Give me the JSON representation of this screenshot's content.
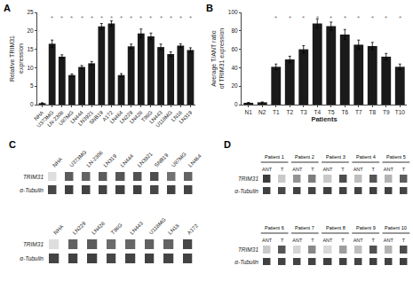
{
  "chart_data": [
    {
      "type": "bar",
      "title": "A",
      "categories": [
        "NHA",
        "U373MG",
        "LN-2308",
        "U87MG",
        "LN444",
        "LN3921",
        "SNB19",
        "A172",
        "LN464",
        "LN229",
        "LN428",
        "T98G",
        "LN443",
        "U118MG",
        "LN18",
        "LN319"
      ],
      "values": [
        0.4,
        16.5,
        13.0,
        8.0,
        10.2,
        11.2,
        21.2,
        22.0,
        8.0,
        15.8,
        19.3,
        18.5,
        15.6,
        13.7,
        16.0,
        14.8
      ],
      "errors": [
        0.1,
        1.0,
        0.5,
        0.3,
        0.4,
        0.5,
        0.8,
        0.7,
        0.4,
        0.6,
        1.2,
        0.9,
        0.8,
        0.6,
        0.5,
        0.6
      ],
      "ylabel": "Relative TRIM31\nexpression",
      "ylim": [
        0,
        25
      ],
      "yticks": [
        0,
        5,
        10,
        15,
        20,
        25
      ],
      "color": "#1a1a1a",
      "grid": false,
      "annotations": [
        {
          "text": "*",
          "category": "U373MG",
          "y": 23.5,
          "color": "#808080"
        },
        {
          "text": "*",
          "category": "LN-2308",
          "y": 23.5,
          "color": "#808080"
        },
        {
          "text": "*",
          "category": "U87MG",
          "y": 23.5,
          "color": "#808080"
        },
        {
          "text": "*",
          "category": "LN444",
          "y": 23.5,
          "color": "#808080"
        },
        {
          "text": "*",
          "category": "LN3921",
          "y": 23.5,
          "color": "#808080"
        },
        {
          "text": "*",
          "category": "SNB19",
          "y": 23.5,
          "color": "#808080"
        },
        {
          "text": "*",
          "category": "A172",
          "y": 23.5,
          "color": "#808080"
        },
        {
          "text": "*",
          "category": "LN464",
          "y": 23.5,
          "color": "#808080"
        },
        {
          "text": "*",
          "category": "LN229",
          "y": 23.5,
          "color": "#808080"
        },
        {
          "text": "*",
          "category": "LN428",
          "y": 23.5,
          "color": "#808080"
        },
        {
          "text": "*",
          "category": "T98G",
          "y": 23.5,
          "color": "#808080"
        },
        {
          "text": "*",
          "category": "LN443",
          "y": 23.5,
          "color": "#808080"
        },
        {
          "text": "*",
          "category": "U118MG",
          "y": 23.5,
          "color": "#808080"
        },
        {
          "text": "*",
          "category": "LN18",
          "y": 23.5,
          "color": "#808080"
        },
        {
          "text": "*",
          "category": "LN319",
          "y": 23.5,
          "color": "#808080"
        }
      ]
    },
    {
      "type": "bar",
      "title": "B",
      "categories": [
        "N1",
        "N2",
        "T1",
        "T2",
        "T3",
        "T4",
        "T5",
        "T6",
        "T7",
        "T8",
        "T9",
        "T10"
      ],
      "values": [
        2.0,
        2.5,
        41.0,
        49.0,
        60.0,
        88.0,
        85.0,
        76.0,
        65.0,
        63.5,
        52.0,
        41.0
      ],
      "errors": [
        0.3,
        0.4,
        3.0,
        3.5,
        4.0,
        5.0,
        4.5,
        5.5,
        5.0,
        4.0,
        3.5,
        3.0
      ],
      "ylabel": "Average T/ANT ratio\nof TRIM31 expression",
      "xlabel": "Patients",
      "ylim": [
        0,
        100
      ],
      "yticks": [
        0,
        20,
        40,
        60,
        80,
        100
      ],
      "color": "#1a1a1a",
      "grid": false,
      "annotations": [
        {
          "text": "*",
          "category": "T1",
          "y": 94,
          "color": "#808080"
        },
        {
          "text": "*",
          "category": "T2",
          "y": 94,
          "color": "#808080"
        },
        {
          "text": "*",
          "category": "T3",
          "y": 94,
          "color": "#808080"
        },
        {
          "text": "*",
          "category": "T4",
          "y": 94,
          "color": "#808080"
        },
        {
          "text": "*",
          "category": "T5",
          "y": 94,
          "color": "#808080"
        },
        {
          "text": "*",
          "category": "T6",
          "y": 94,
          "color": "#808080"
        },
        {
          "text": "*",
          "category": "T7",
          "y": 94,
          "color": "#808080"
        },
        {
          "text": "*",
          "category": "T8",
          "y": 94,
          "color": "#808080"
        },
        {
          "text": "*",
          "category": "T9",
          "y": 94,
          "color": "#808080"
        },
        {
          "text": "*",
          "category": "T10",
          "y": 94,
          "color": "#808080"
        }
      ]
    },
    {
      "type": "blot",
      "title": "C",
      "categories": [
        "NHA",
        "U373MG",
        "LN-2308",
        "LN319",
        "LN444",
        "LN3921",
        "SNB19",
        "U87MG",
        "LN464"
      ],
      "series": [
        {
          "name": "TRIM31",
          "values": [
            0.15,
            0.75,
            0.72,
            0.75,
            0.78,
            0.8,
            0.82,
            0.65,
            0.72
          ]
        },
        {
          "name": "α-Tubulin",
          "values": [
            0.85,
            0.88,
            0.87,
            0.86,
            0.87,
            0.88,
            0.85,
            0.87,
            0.86
          ]
        }
      ]
    },
    {
      "type": "blot",
      "categories": [
        "NHA",
        "LN229",
        "LN428",
        "T98G",
        "LN443",
        "U118MG",
        "LN18",
        "A172"
      ],
      "series": [
        {
          "name": "TRIM31",
          "values": [
            0.15,
            0.72,
            0.75,
            0.68,
            0.7,
            0.73,
            0.72,
            0.85
          ]
        },
        {
          "name": "α-Tubulin",
          "values": [
            0.86,
            0.87,
            0.88,
            0.85,
            0.86,
            0.87,
            0.86,
            0.87
          ]
        }
      ]
    },
    {
      "type": "blot",
      "title": "D",
      "groups": [
        "Patient 1",
        "Patient 2",
        "Patient 3",
        "Patient 4",
        "Patient 5"
      ],
      "categories": [
        "ANT",
        "T",
        "ANT",
        "T",
        "ANT",
        "T",
        "ANT",
        "T",
        "ANT",
        "T"
      ],
      "series": [
        {
          "name": "TRIM31",
          "values": [
            0.9,
            0.25,
            0.5,
            0.6,
            0.25,
            0.82,
            0.3,
            0.78,
            0.35,
            0.75
          ]
        },
        {
          "name": "α-Tubulin",
          "values": [
            0.88,
            0.85,
            0.87,
            0.86,
            0.88,
            0.87,
            0.86,
            0.88,
            0.87,
            0.86
          ]
        }
      ]
    },
    {
      "type": "blot",
      "groups": [
        "Patient 6",
        "Patient 7",
        "Patient 8",
        "Patient 9",
        "Patient 10"
      ],
      "categories": [
        "ANT",
        "T",
        "ANT",
        "T",
        "ANT",
        "T",
        "ANT",
        "T",
        "ANT",
        "T"
      ],
      "series": [
        {
          "name": "TRIM31",
          "values": [
            0.25,
            0.78,
            0.2,
            0.55,
            0.18,
            0.45,
            0.3,
            0.8,
            0.35,
            0.82
          ]
        },
        {
          "name": "α-Tubulin",
          "values": [
            0.88,
            0.87,
            0.86,
            0.87,
            0.88,
            0.87,
            0.86,
            0.88,
            0.87,
            0.88
          ]
        }
      ]
    }
  ]
}
